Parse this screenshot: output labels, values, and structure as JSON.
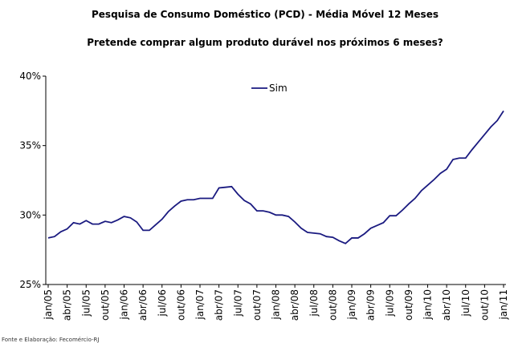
{
  "chart_data": {
    "type": "line",
    "title": "Pesquisa de Consumo Doméstico (PCD) - Média Móvel 12 Meses",
    "subtitle": "Pretende comprar algum produto durável nos próximos 6 meses?",
    "source": "Fonte e Elaboração: Fecomércio-RJ",
    "categories": [
      "jan/05",
      null,
      null,
      "abr/05",
      null,
      null,
      "jul/05",
      null,
      null,
      "out/05",
      null,
      null,
      "jan/06",
      null,
      null,
      "abr/06",
      null,
      null,
      "jul/06",
      null,
      null,
      "out/06",
      null,
      null,
      "jan/07",
      null,
      null,
      "abr/07",
      null,
      null,
      "jul/07",
      null,
      null,
      "out/07",
      null,
      null,
      "jan/08",
      null,
      null,
      "abr/08",
      null,
      null,
      "jul/08",
      null,
      null,
      "out/08",
      null,
      null,
      "jan/09",
      null,
      null,
      "abr/09",
      null,
      null,
      "jul/09",
      null,
      null,
      "out/09",
      null,
      null,
      "jan/10",
      null,
      null,
      "abr/10",
      null,
      null,
      "jul/10",
      null,
      null,
      "out/10",
      null,
      null,
      "jan/11"
    ],
    "series": [
      {
        "name": "Sim",
        "color": "#1a1a80",
        "values": [
          28.35,
          28.45,
          28.8,
          29.0,
          29.45,
          29.35,
          29.6,
          29.35,
          29.35,
          29.55,
          29.45,
          29.65,
          29.9,
          29.8,
          29.5,
          28.9,
          28.9,
          29.3,
          29.7,
          30.25,
          30.65,
          31.0,
          31.1,
          31.1,
          31.2,
          31.2,
          31.2,
          31.95,
          32.0,
          32.05,
          31.5,
          31.05,
          30.8,
          30.3,
          30.3,
          30.2,
          30.0,
          30.0,
          29.9,
          29.5,
          29.05,
          28.75,
          28.7,
          28.65,
          28.45,
          28.4,
          28.15,
          27.95,
          28.35,
          28.35,
          28.65,
          29.05,
          29.25,
          29.45,
          29.95,
          29.95,
          30.35,
          30.8,
          31.2,
          31.75,
          32.15,
          32.55,
          33.0,
          33.3,
          34.0,
          34.1,
          34.1,
          34.7,
          35.25,
          35.8,
          36.35,
          36.8,
          37.5
        ]
      }
    ],
    "ylim": [
      25,
      40
    ],
    "yticks": [
      {
        "value": 25,
        "label": "25%"
      },
      {
        "value": 30,
        "label": "30%"
      },
      {
        "value": 35,
        "label": "35%"
      },
      {
        "value": 40,
        "label": "40%"
      }
    ],
    "grid": false
  }
}
